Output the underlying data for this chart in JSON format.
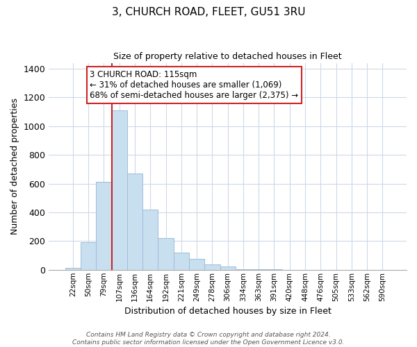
{
  "title": "3, CHURCH ROAD, FLEET, GU51 3RU",
  "subtitle": "Size of property relative to detached houses in Fleet",
  "xlabel": "Distribution of detached houses by size in Fleet",
  "ylabel": "Number of detached properties",
  "bar_color": "#c8dff0",
  "bar_edge_color": "#a0bcd8",
  "categories": [
    "22sqm",
    "50sqm",
    "79sqm",
    "107sqm",
    "136sqm",
    "164sqm",
    "192sqm",
    "221sqm",
    "249sqm",
    "278sqm",
    "306sqm",
    "334sqm",
    "363sqm",
    "391sqm",
    "420sqm",
    "448sqm",
    "476sqm",
    "505sqm",
    "533sqm",
    "562sqm",
    "590sqm"
  ],
  "values": [
    15,
    193,
    610,
    1110,
    670,
    420,
    220,
    120,
    78,
    38,
    25,
    5,
    3,
    2,
    0,
    0,
    0,
    0,
    0,
    0,
    0
  ],
  "ylim": [
    0,
    1440
  ],
  "yticks": [
    0,
    200,
    400,
    600,
    800,
    1000,
    1200,
    1400
  ],
  "annotation_line1": "3 CHURCH ROAD: 115sqm",
  "annotation_line2": "← 31% of detached houses are smaller (1,069)",
  "annotation_line3": "68% of semi-detached houses are larger (2,375) →",
  "annotation_box_edge": "#cc2222",
  "vline_color": "#cc2222",
  "footer_line1": "Contains HM Land Registry data © Crown copyright and database right 2024.",
  "footer_line2": "Contains public sector information licensed under the Open Government Licence v3.0.",
  "background_color": "#ffffff",
  "grid_color": "#ccd9e8",
  "title_fontsize": 11,
  "subtitle_fontsize": 9
}
